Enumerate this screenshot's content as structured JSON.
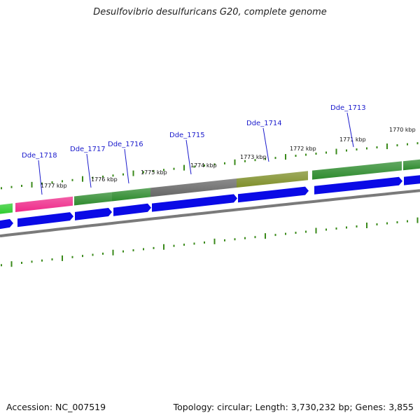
{
  "title": "Desulfovibrio desulfuricans G20, complete genome",
  "footer": {
    "accession": "Accession: NC_007519",
    "summary": "Topology: circular; Length: 3,730,232 bp; Genes: 3,855"
  },
  "colors": {
    "cds_strand": "#0a0ae6",
    "backbone": "#7a7a7a",
    "ticks": "#3a8a1a",
    "label_text": "#1a1acc",
    "leader_line": "#1a1acc"
  },
  "scale_labels": [
    "1777 kbp",
    "1776 kbp",
    "1775 kbp",
    "1774 kbp",
    "1773 kbp",
    "1772 kbp",
    "1771 kbp",
    "1770 kbp"
  ],
  "genes": [
    {
      "name": "",
      "color": "#2ecc2e"
    },
    {
      "name": "Dde_1718",
      "color": "#ee2a8a"
    },
    {
      "name": "Dde_1717",
      "color": "#2e8b2e"
    },
    {
      "name": "Dde_1716",
      "color": "#2e8b2e"
    },
    {
      "name": "Dde_1715",
      "color": "#666666"
    },
    {
      "name": "Dde_1714",
      "color": "#7f8f2a"
    },
    {
      "name": "Dde_1713",
      "color": "#2e8b2e"
    },
    {
      "name": "",
      "color": "#2e8b2e"
    }
  ]
}
